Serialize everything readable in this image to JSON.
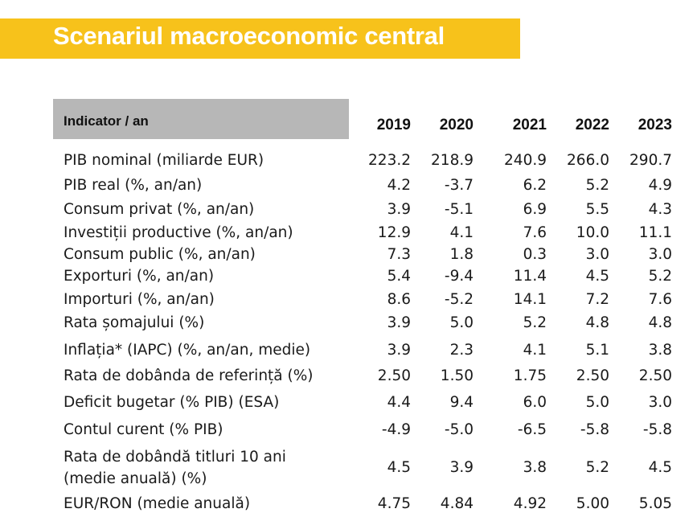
{
  "title": "Scenariul macroeconomic central",
  "colors": {
    "title_bar": "#f7c21b",
    "header_bg": "#b7b7b7"
  },
  "table": {
    "header_label": "Indicator / an",
    "years": [
      "2019",
      "2020",
      "2021",
      "2022",
      "2023"
    ],
    "rows": [
      {
        "label": "PIB nominal (miliarde EUR)",
        "values": [
          "223.2",
          "218.9",
          "240.9",
          "266.0",
          "290.7"
        ]
      },
      {
        "label": "PIB real (%, an/an)",
        "values": [
          "4.2",
          "-3.7",
          "6.2",
          "5.2",
          "4.9"
        ]
      },
      {
        "label": "Consum privat (%, an/an)",
        "values": [
          "3.9",
          "-5.1",
          "6.9",
          "5.5",
          "4.3"
        ]
      },
      {
        "label": "Investiții productive (%, an/an)",
        "values": [
          "12.9",
          "4.1",
          "7.6",
          "10.0",
          "11.1"
        ]
      },
      {
        "label": "Consum public (%, an/an)",
        "values": [
          "7.3",
          "1.8",
          "0.3",
          "3.0",
          "3.0"
        ]
      },
      {
        "label": "Exporturi (%, an/an)",
        "values": [
          "5.4",
          "-9.4",
          "11.4",
          "4.5",
          "5.2"
        ]
      },
      {
        "label": "Importuri (%, an/an)",
        "values": [
          "8.6",
          "-5.2",
          "14.1",
          "7.2",
          "7.6"
        ]
      },
      {
        "label": "Rata șomajului (%)",
        "values": [
          "3.9",
          "5.0",
          "5.2",
          "4.8",
          "4.8"
        ]
      },
      {
        "label": "Inflația* (IAPC) (%, an/an, medie)",
        "values": [
          "3.9",
          "2.3",
          "4.1",
          "5.1",
          "3.8"
        ]
      },
      {
        "label": "Rata de dobânda de referință (%)",
        "values": [
          "2.50",
          "1.50",
          "1.75",
          "2.50",
          "2.50"
        ]
      },
      {
        "label": "Deficit bugetar (% PIB) (ESA)",
        "values": [
          "4.4",
          "9.4",
          "6.0",
          "5.0",
          "3.0"
        ]
      },
      {
        "label": "Contul curent (% PIB)",
        "values": [
          "-4.9",
          "-5.0",
          "-6.5",
          "-5.8",
          "-5.8"
        ]
      },
      {
        "label": "Rata de dobândă titluri 10 ani (medie anuală) (%)",
        "values": [
          "4.5",
          "3.9",
          "3.8",
          "5.2",
          "4.5"
        ]
      },
      {
        "label": "EUR/RON (medie anuală)",
        "values": [
          "4.75",
          "4.84",
          "4.92",
          "5.00",
          "5.05"
        ]
      }
    ]
  }
}
